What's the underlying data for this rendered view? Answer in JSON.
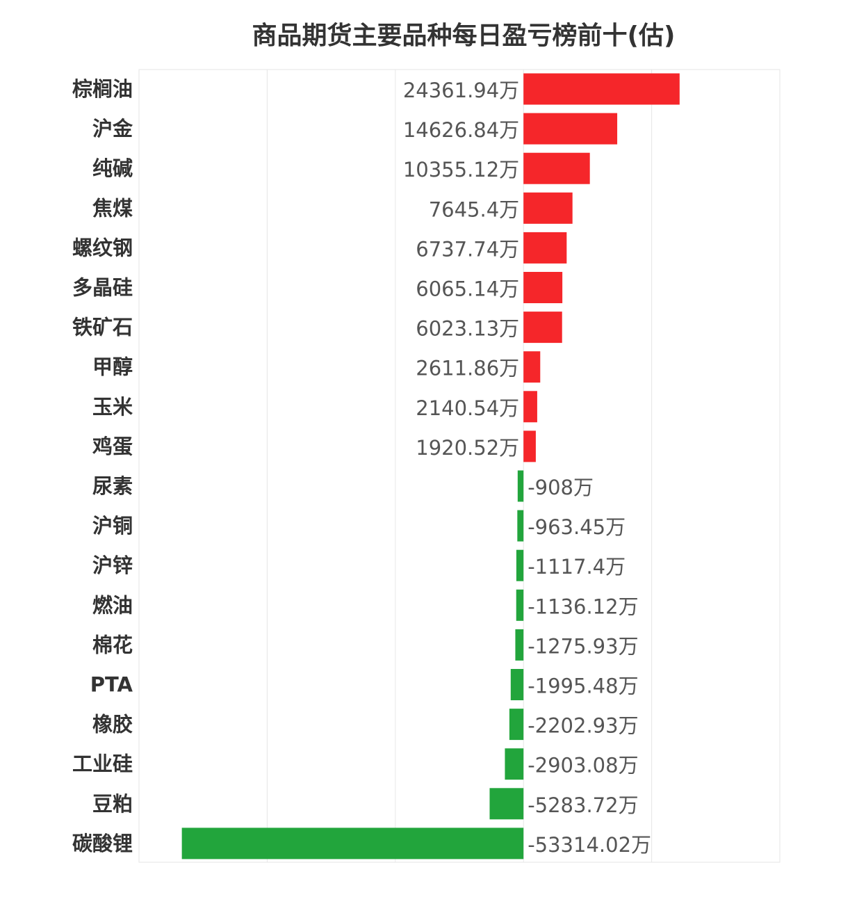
{
  "chart_data": {
    "type": "bar",
    "orientation": "horizontal",
    "title": "商品期货主要品种每日盈亏榜前十(估)",
    "unit_suffix": "万",
    "categories": [
      "棕榈油",
      "沪金",
      "纯碱",
      "焦煤",
      "螺纹钢",
      "多晶硅",
      "铁矿石",
      "甲醇",
      "玉米",
      "鸡蛋",
      "尿素",
      "沪铜",
      "沪锌",
      "燃油",
      "棉花",
      "PTA",
      "橡胶",
      "工业硅",
      "豆粕",
      "碳酸锂"
    ],
    "values": [
      24361.94,
      14626.84,
      10355.12,
      7645.4,
      6737.74,
      6065.14,
      6023.13,
      2611.86,
      2140.54,
      1920.52,
      -908,
      -963.45,
      -1117.4,
      -1136.12,
      -1275.93,
      -1995.48,
      -2202.93,
      -2903.08,
      -5283.72,
      -53314.02
    ],
    "value_labels": [
      "24361.94万",
      "14626.84万",
      "10355.12万",
      "7645.4万",
      "6737.74万",
      "6065.14万",
      "6023.13万",
      "2611.86万",
      "2140.54万",
      "1920.52万",
      "-908万",
      "-963.45万",
      "-1117.4万",
      "-1136.12万",
      "-1275.93万",
      "-1995.48万",
      "-2202.93万",
      "-2903.08万",
      "-5283.72万",
      "-53314.02万"
    ],
    "xlim": [
      -60000,
      40000
    ],
    "x_gridlines": [
      -60000,
      -40000,
      -20000,
      0,
      20000,
      40000
    ],
    "grid": true,
    "colors": {
      "positive": "#f5262a",
      "negative": "#22a53c",
      "grid": "#e6e6e6"
    }
  }
}
